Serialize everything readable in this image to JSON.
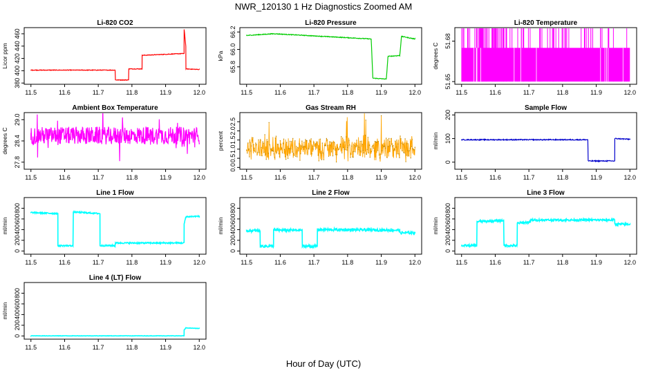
{
  "figure": {
    "title": "NWR_120130  1 Hz Diagnostics Zoomed AM",
    "xlabel": "Hour of Day (UTC)"
  },
  "chart_data": [
    {
      "type": "line",
      "title": "Li-820 CO2",
      "ylabel": "Licor ppm",
      "color": "#ff0000",
      "xlim": [
        11.5,
        12.0
      ],
      "ylim": [
        378,
        470
      ],
      "xticks": [
        "11.5",
        "11.6",
        "11.7",
        "11.8",
        "11.9",
        "12.0"
      ],
      "yticks": [
        "380",
        "400",
        "420",
        "440",
        "460"
      ],
      "series": [
        {
          "x": [
            11.5,
            11.75,
            11.75,
            11.79,
            11.79,
            11.83,
            11.83,
            11.955,
            11.955,
            11.96,
            11.96,
            12.0
          ],
          "y": [
            401,
            401,
            385,
            385,
            403,
            403,
            425,
            428,
            468,
            440,
            403,
            402
          ],
          "noise": 0.5
        }
      ]
    },
    {
      "type": "line",
      "title": "Li-820 Pressure",
      "ylabel": "kPa",
      "color": "#00cc00",
      "xlim": [
        11.5,
        12.0
      ],
      "ylim": [
        65.6,
        66.25
      ],
      "xticks": [
        "11.5",
        "11.6",
        "11.7",
        "11.8",
        "11.9",
        "12.0"
      ],
      "yticks": [
        "65.8",
        "66.0",
        "66.2"
      ],
      "series": [
        {
          "x": [
            11.5,
            11.58,
            11.87,
            11.875,
            11.915,
            11.92,
            11.955,
            11.96,
            12.0
          ],
          "y": [
            66.16,
            66.18,
            66.12,
            65.67,
            65.66,
            65.92,
            65.93,
            66.15,
            66.12
          ],
          "noise": 0.004
        }
      ]
    },
    {
      "type": "area",
      "title": "Li-820 Temperature",
      "ylabel": "degrees C",
      "color": "#ff00ff",
      "xlim": [
        11.5,
        12.0
      ],
      "ylim": [
        51.648,
        51.69
      ],
      "xticks": [
        "11.5",
        "11.6",
        "11.7",
        "11.8",
        "11.9",
        "12.0"
      ],
      "yticks": [
        "51.65",
        "51.68"
      ],
      "series": [
        {
          "x": [
            11.5,
            12.0
          ],
          "y": [
            51.675,
            51.675
          ],
          "low": 51.65,
          "spikes": 51.69
        }
      ]
    },
    {
      "type": "line",
      "title": "Ambient Box Temperature",
      "ylabel": "degrees C",
      "color": "#ff00ff",
      "xlim": [
        11.5,
        12.0
      ],
      "ylim": [
        27.6,
        29.2
      ],
      "xticks": [
        "11.5",
        "11.6",
        "11.7",
        "11.8",
        "11.9",
        "12.0"
      ],
      "yticks": [
        "27.8",
        "28.4",
        "29.0"
      ],
      "series": [
        {
          "x": [
            11.5,
            12.0
          ],
          "y": [
            28.55,
            28.55
          ],
          "noise": 0.25
        }
      ]
    },
    {
      "type": "scatter",
      "title": "Gas Stream RH",
      "ylabel": "percent",
      "color": "#ffa500",
      "xlim": [
        11.5,
        12.0
      ],
      "ylim": [
        -0.1,
        3.0
      ],
      "xticks": [
        "11.5",
        "11.6",
        "11.7",
        "11.8",
        "11.9",
        "12.0"
      ],
      "yticks": [
        "0.0",
        "0.5",
        "1.0",
        "1.5",
        "2.0",
        "2.5"
      ],
      "series": [
        {
          "x": [
            11.5,
            12.0
          ],
          "y": [
            1.05,
            1.05
          ],
          "noise": 0.55
        }
      ]
    },
    {
      "type": "line",
      "title": "Sample Flow",
      "ylabel": "ml/min",
      "color": "#0000cc",
      "xlim": [
        11.5,
        12.0
      ],
      "ylim": [
        -30,
        210
      ],
      "xticks": [
        "11.5",
        "11.6",
        "11.7",
        "11.8",
        "11.9",
        "12.0"
      ],
      "yticks": [
        "0",
        "100",
        "200"
      ],
      "series": [
        {
          "x": [
            11.5,
            11.875,
            11.875,
            11.955,
            11.955,
            12.0
          ],
          "y": [
            95,
            95,
            5,
            5,
            100,
            97
          ],
          "noise": 2
        }
      ]
    },
    {
      "type": "line",
      "title": "Line 1 Flow",
      "ylabel": "ml/min",
      "color": "#00ffff",
      "xlim": [
        11.5,
        12.0
      ],
      "ylim": [
        -60,
        1000
      ],
      "xticks": [
        "11.5",
        "11.6",
        "11.7",
        "11.8",
        "11.9",
        "12.0"
      ],
      "yticks": [
        "0",
        "200",
        "400",
        "600",
        "800"
      ],
      "series": [
        {
          "x": [
            11.5,
            11.58,
            11.58,
            11.625,
            11.625,
            11.705,
            11.705,
            11.75,
            11.75,
            11.955,
            11.955,
            11.96,
            12.0
          ],
          "y": [
            720,
            700,
            100,
            100,
            730,
            700,
            100,
            100,
            150,
            150,
            500,
            640,
            650
          ],
          "noise": 12
        }
      ]
    },
    {
      "type": "line",
      "title": "Line 2 Flow",
      "ylabel": "ml/min",
      "color": "#00ffff",
      "xlim": [
        11.5,
        12.0
      ],
      "ylim": [
        -60,
        1000
      ],
      "xticks": [
        "11.5",
        "11.6",
        "11.7",
        "11.8",
        "11.9",
        "12.0"
      ],
      "yticks": [
        "0",
        "200",
        "400",
        "600",
        "800"
      ],
      "series": [
        {
          "x": [
            11.5,
            11.54,
            11.54,
            11.58,
            11.58,
            11.665,
            11.665,
            11.71,
            11.71,
            11.955,
            11.955,
            12.0
          ],
          "y": [
            380,
            380,
            90,
            90,
            390,
            390,
            90,
            90,
            400,
            390,
            340,
            340
          ],
          "noise": 25
        }
      ]
    },
    {
      "type": "line",
      "title": "Line 3 Flow",
      "ylabel": "ml/min",
      "color": "#00ffff",
      "xlim": [
        11.5,
        12.0
      ],
      "ylim": [
        -60,
        1000
      ],
      "xticks": [
        "11.5",
        "11.6",
        "11.7",
        "11.8",
        "11.9",
        "12.0"
      ],
      "yticks": [
        "0",
        "200",
        "400",
        "600",
        "800"
      ],
      "series": [
        {
          "x": [
            11.5,
            11.545,
            11.545,
            11.625,
            11.625,
            11.665,
            11.665,
            11.705,
            11.705,
            11.955,
            11.955,
            12.0
          ],
          "y": [
            100,
            100,
            550,
            570,
            100,
            100,
            520,
            540,
            580,
            580,
            500,
            500
          ],
          "noise": 20
        }
      ]
    },
    {
      "type": "line",
      "title": "Line 4 (LT) Flow",
      "ylabel": "ml/min",
      "color": "#00ffff",
      "xlim": [
        11.5,
        12.0
      ],
      "ylim": [
        -60,
        1000
      ],
      "xticks": [
        "11.5",
        "11.6",
        "11.7",
        "11.8",
        "11.9",
        "12.0"
      ],
      "yticks": [
        "0",
        "200",
        "400",
        "600",
        "800"
      ],
      "series": [
        {
          "x": [
            11.5,
            11.955,
            11.955,
            11.96,
            12.0
          ],
          "y": [
            2,
            2,
            110,
            150,
            140
          ],
          "noise": 3
        }
      ]
    }
  ]
}
